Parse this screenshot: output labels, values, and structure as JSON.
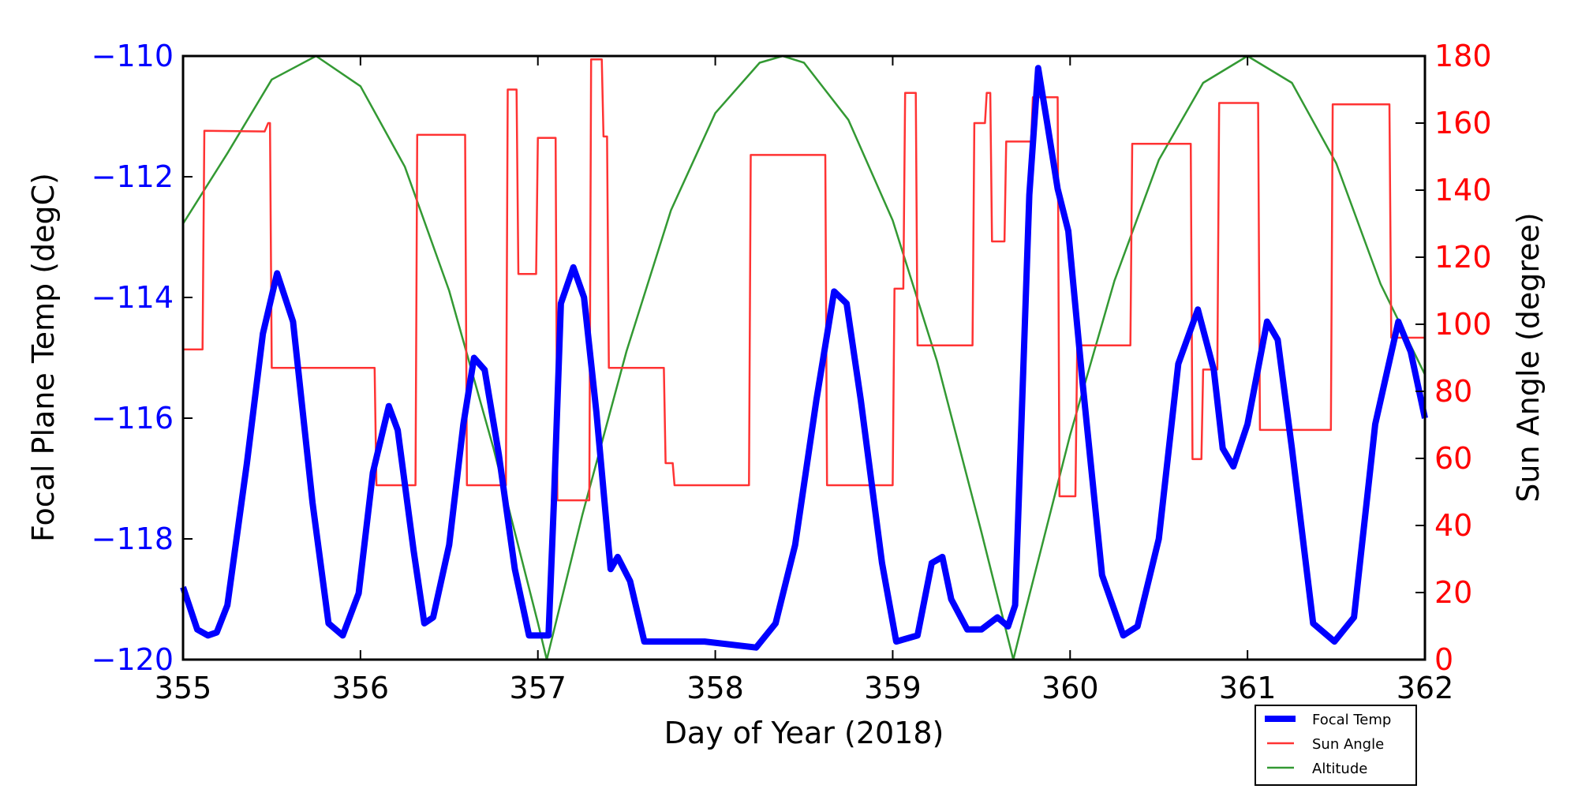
{
  "chart_data": {
    "type": "line",
    "xlabel": "Day of Year (2018)",
    "ylabel_left": "Focal Plane Temp (degC)",
    "ylabel_right": "Sun Angle (degree)",
    "xlim": [
      355,
      362
    ],
    "ylim_left": [
      -120,
      -110
    ],
    "ylim_right": [
      0,
      180
    ],
    "x_ticks": [
      "355",
      "356",
      "357",
      "358",
      "359",
      "360",
      "361",
      "362"
    ],
    "y_left_ticks": [
      "−120",
      "−118",
      "−116",
      "−114",
      "−112",
      "−110"
    ],
    "y_right_ticks": [
      "0",
      "20",
      "40",
      "60",
      "80",
      "100",
      "120",
      "140",
      "160",
      "180"
    ],
    "grid": false,
    "legend_position": "below-right",
    "colors": {
      "left_axis": "#0000ff",
      "right_axis": "#ff0000",
      "focal": "#0000ff",
      "sun": "#ff3333",
      "altitude": "#339933"
    },
    "series": [
      {
        "name": "Focal Temp",
        "axis": "left",
        "points": [
          [
            355.0,
            -118.8
          ],
          [
            355.08,
            -119.5
          ],
          [
            355.14,
            -119.6
          ],
          [
            355.19,
            -119.55
          ],
          [
            355.25,
            -119.1
          ],
          [
            355.36,
            -116.75
          ],
          [
            355.45,
            -114.6
          ],
          [
            355.53,
            -113.6
          ],
          [
            355.62,
            -114.4
          ],
          [
            355.73,
            -117.4
          ],
          [
            355.82,
            -119.4
          ],
          [
            355.9,
            -119.6
          ],
          [
            355.99,
            -118.9
          ],
          [
            356.07,
            -116.9
          ],
          [
            356.16,
            -115.8
          ],
          [
            356.21,
            -116.2
          ],
          [
            356.3,
            -118.2
          ],
          [
            356.36,
            -119.4
          ],
          [
            356.41,
            -119.3
          ],
          [
            356.5,
            -118.1
          ],
          [
            356.58,
            -116.1
          ],
          [
            356.64,
            -115.0
          ],
          [
            356.7,
            -115.2
          ],
          [
            356.78,
            -116.6
          ],
          [
            356.87,
            -118.5
          ],
          [
            356.95,
            -119.6
          ],
          [
            357.06,
            -119.6
          ],
          [
            357.09,
            -117.4
          ],
          [
            357.13,
            -114.1
          ],
          [
            357.2,
            -113.5
          ],
          [
            357.26,
            -114.0
          ],
          [
            357.33,
            -115.9
          ],
          [
            357.41,
            -118.5
          ],
          [
            357.45,
            -118.3
          ],
          [
            357.52,
            -118.7
          ],
          [
            357.6,
            -119.7
          ],
          [
            357.94,
            -119.7
          ],
          [
            358.23,
            -119.8
          ],
          [
            358.34,
            -119.4
          ],
          [
            358.45,
            -118.1
          ],
          [
            358.57,
            -115.7
          ],
          [
            358.67,
            -113.9
          ],
          [
            358.74,
            -114.1
          ],
          [
            358.82,
            -115.7
          ],
          [
            358.94,
            -118.4
          ],
          [
            359.02,
            -119.7
          ],
          [
            359.14,
            -119.6
          ],
          [
            359.22,
            -118.4
          ],
          [
            359.28,
            -118.3
          ],
          [
            359.33,
            -119.0
          ],
          [
            359.42,
            -119.5
          ],
          [
            359.5,
            -119.5
          ],
          [
            359.59,
            -119.3
          ],
          [
            359.65,
            -119.45
          ],
          [
            359.69,
            -119.1
          ],
          [
            359.73,
            -115.7
          ],
          [
            359.77,
            -112.3
          ],
          [
            359.82,
            -110.2
          ],
          [
            359.87,
            -111.1
          ],
          [
            359.93,
            -112.2
          ],
          [
            359.99,
            -112.9
          ],
          [
            360.07,
            -115.4
          ],
          [
            360.18,
            -118.6
          ],
          [
            360.3,
            -119.6
          ],
          [
            360.38,
            -119.45
          ],
          [
            360.5,
            -118.0
          ],
          [
            360.61,
            -115.1
          ],
          [
            360.72,
            -114.2
          ],
          [
            360.81,
            -115.2
          ],
          [
            360.86,
            -116.5
          ],
          [
            360.92,
            -116.8
          ],
          [
            361.0,
            -116.1
          ],
          [
            361.11,
            -114.4
          ],
          [
            361.17,
            -114.7
          ],
          [
            361.25,
            -116.5
          ],
          [
            361.37,
            -119.4
          ],
          [
            361.49,
            -119.7
          ],
          [
            361.6,
            -119.3
          ],
          [
            361.72,
            -116.1
          ],
          [
            361.85,
            -114.4
          ],
          [
            361.92,
            -114.9
          ],
          [
            362.0,
            -116.0
          ]
        ]
      },
      {
        "name": "Sun Angle",
        "axis": "right",
        "points": [
          [
            355.0,
            92.5
          ],
          [
            355.11,
            92.5
          ],
          [
            355.12,
            157.7
          ],
          [
            355.46,
            157.5
          ],
          [
            355.48,
            160
          ],
          [
            355.49,
            160
          ],
          [
            355.5,
            87
          ],
          [
            356.08,
            87
          ],
          [
            356.09,
            52
          ],
          [
            356.31,
            52
          ],
          [
            356.32,
            156.5
          ],
          [
            356.59,
            156.5
          ],
          [
            356.6,
            52
          ],
          [
            356.82,
            52
          ],
          [
            356.83,
            170
          ],
          [
            356.88,
            170
          ],
          [
            356.89,
            115
          ],
          [
            356.99,
            115
          ],
          [
            357.0,
            155.6
          ],
          [
            357.1,
            155.6
          ],
          [
            357.11,
            47.5
          ],
          [
            357.29,
            47.5
          ],
          [
            357.3,
            179
          ],
          [
            357.36,
            179
          ],
          [
            357.37,
            156
          ],
          [
            357.39,
            156
          ],
          [
            357.4,
            87
          ],
          [
            357.71,
            87
          ],
          [
            357.72,
            58.6
          ],
          [
            357.76,
            58.6
          ],
          [
            357.77,
            52
          ],
          [
            358.19,
            52
          ],
          [
            358.2,
            150.5
          ],
          [
            358.62,
            150.5
          ],
          [
            358.63,
            52
          ],
          [
            359.0,
            52
          ],
          [
            359.01,
            110.6
          ],
          [
            359.06,
            110.6
          ],
          [
            359.07,
            169
          ],
          [
            359.13,
            169
          ],
          [
            359.14,
            93.7
          ],
          [
            359.45,
            93.7
          ],
          [
            359.46,
            160
          ],
          [
            359.52,
            160
          ],
          [
            359.53,
            169
          ],
          [
            359.55,
            169
          ],
          [
            359.56,
            124.7
          ],
          [
            359.63,
            124.7
          ],
          [
            359.64,
            154.5
          ],
          [
            359.78,
            154.5
          ],
          [
            359.79,
            167.7
          ],
          [
            359.93,
            167.7
          ],
          [
            359.94,
            48.7
          ],
          [
            360.03,
            48.7
          ],
          [
            360.04,
            93.7
          ],
          [
            360.34,
            93.7
          ],
          [
            360.35,
            153.8
          ],
          [
            360.68,
            153.8
          ],
          [
            360.69,
            59.8
          ],
          [
            360.74,
            59.8
          ],
          [
            360.75,
            86.5
          ],
          [
            360.83,
            86.5
          ],
          [
            360.84,
            166
          ],
          [
            361.06,
            166
          ],
          [
            361.07,
            68.5
          ],
          [
            361.47,
            68.5
          ],
          [
            361.48,
            165.6
          ],
          [
            361.8,
            165.6
          ],
          [
            361.81,
            96
          ],
          [
            362.0,
            96
          ]
        ]
      },
      {
        "name": "Altitude",
        "axis": "right",
        "points": [
          [
            355.0,
            130
          ],
          [
            355.25,
            151
          ],
          [
            355.5,
            173
          ],
          [
            355.75,
            180
          ],
          [
            356.0,
            171
          ],
          [
            356.25,
            147
          ],
          [
            356.5,
            110
          ],
          [
            356.75,
            63
          ],
          [
            357.0,
            11
          ],
          [
            357.05,
            0
          ],
          [
            357.25,
            43
          ],
          [
            357.5,
            92
          ],
          [
            357.75,
            134
          ],
          [
            358.0,
            163
          ],
          [
            358.25,
            178
          ],
          [
            358.38,
            180
          ],
          [
            358.5,
            178
          ],
          [
            358.75,
            161
          ],
          [
            359.0,
            131
          ],
          [
            359.25,
            89
          ],
          [
            359.5,
            38
          ],
          [
            359.68,
            0
          ],
          [
            359.75,
            15
          ],
          [
            360.0,
            67
          ],
          [
            360.25,
            113
          ],
          [
            360.5,
            149
          ],
          [
            360.75,
            172
          ],
          [
            361.0,
            180
          ],
          [
            361.25,
            172
          ],
          [
            361.5,
            148
          ],
          [
            361.75,
            112
          ],
          [
            362.0,
            85
          ]
        ]
      }
    ]
  }
}
